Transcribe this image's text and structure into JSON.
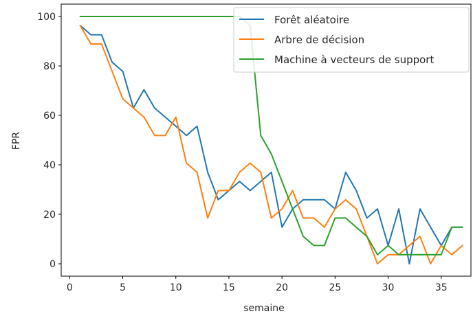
{
  "chart_data": {
    "type": "line",
    "xlabel": "semaine",
    "ylabel": "FPR",
    "xlim": [
      -0.8,
      37.8
    ],
    "ylim": [
      -5,
      105
    ],
    "xticks": [
      0,
      5,
      10,
      15,
      20,
      25,
      30,
      35
    ],
    "yticks": [
      0,
      20,
      40,
      60,
      80,
      100
    ],
    "grid": false,
    "legend_position": "top-right",
    "x": [
      1,
      2,
      3,
      4,
      5,
      6,
      7,
      8,
      9,
      10,
      11,
      12,
      13,
      14,
      15,
      16,
      17,
      18,
      19,
      20,
      21,
      22,
      23,
      24,
      25,
      26,
      27,
      28,
      29,
      30,
      31,
      32,
      33,
      34,
      35,
      36,
      37
    ],
    "series": [
      {
        "name": "Forêt aléatoire",
        "color": "#1f77b4",
        "values": [
          96.3,
          92.6,
          92.6,
          81.5,
          77.8,
          63.0,
          70.4,
          63.0,
          59.3,
          55.6,
          51.9,
          55.6,
          37.0,
          25.9,
          29.6,
          33.3,
          29.6,
          33.3,
          37.0,
          14.8,
          22.2,
          25.9,
          25.9,
          25.9,
          22.2,
          37.0,
          29.6,
          18.5,
          22.2,
          7.4,
          22.2,
          0.0,
          22.2,
          14.8,
          7.4,
          14.8,
          14.8
        ]
      },
      {
        "name": "Arbre de décision",
        "color": "#ff7f0e",
        "values": [
          96.3,
          88.9,
          88.9,
          77.8,
          66.7,
          63.0,
          59.3,
          51.9,
          51.9,
          59.3,
          40.7,
          37.0,
          18.5,
          29.6,
          29.6,
          37.0,
          40.7,
          37.0,
          18.5,
          22.2,
          29.6,
          18.5,
          18.5,
          14.8,
          22.2,
          25.9,
          22.2,
          11.1,
          0.0,
          3.7,
          3.7,
          7.4,
          11.1,
          0.0,
          7.4,
          3.7,
          7.4
        ]
      },
      {
        "name": "Machine à vecteurs de support",
        "color": "#2ca02c",
        "values": [
          100,
          100,
          100,
          100,
          100,
          100,
          100,
          100,
          100,
          100,
          100,
          100,
          100,
          100,
          100,
          100,
          96.3,
          51.9,
          44.4,
          33.3,
          22.2,
          11.1,
          7.4,
          7.4,
          18.5,
          18.5,
          14.8,
          11.1,
          3.7,
          7.4,
          3.7,
          3.7,
          3.7,
          3.7,
          3.7,
          14.8,
          14.8
        ]
      }
    ]
  }
}
